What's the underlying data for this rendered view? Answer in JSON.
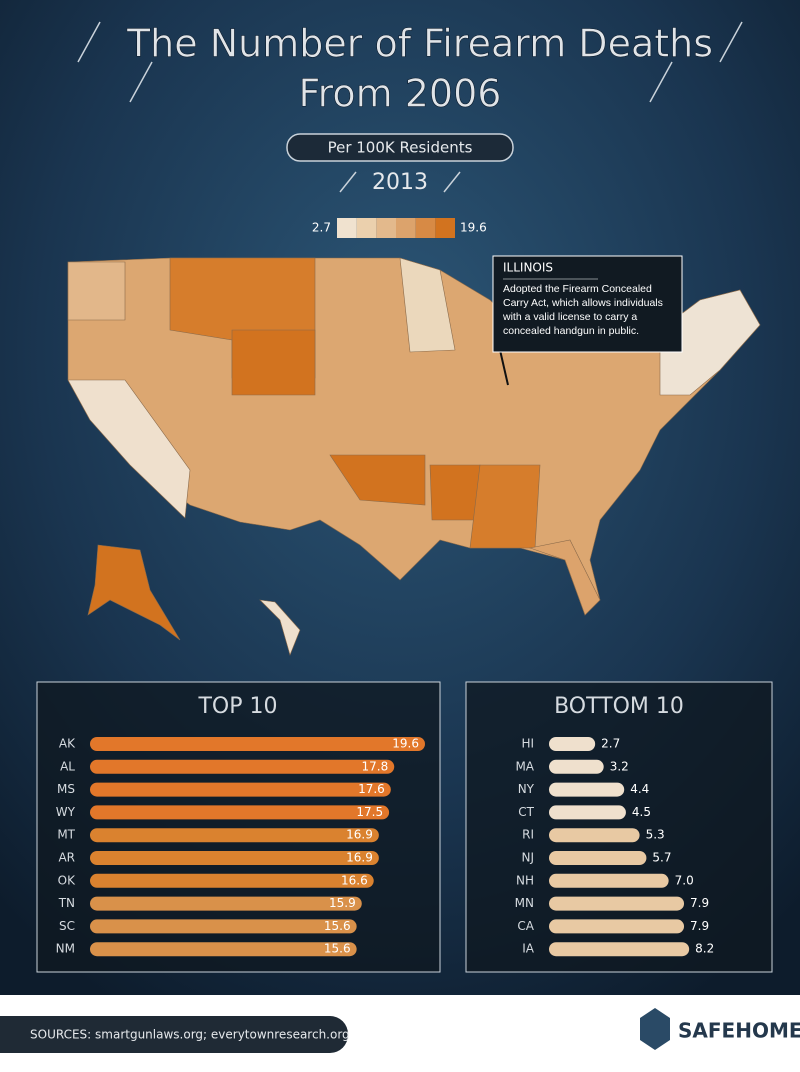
{
  "title": [
    "The Number of Firearm Deaths",
    "From 2006"
  ],
  "subtitle": "Per 100K Residents",
  "year": "2013",
  "map": {
    "legend_min": 2.7,
    "legend_max": 19.6,
    "legend_colors": [
      "#f0e2cf",
      "#ebd0ad",
      "#e3b98c",
      "#dca36c",
      "#d78a45",
      "#d2731f"
    ],
    "callout": {
      "title": "ILLINOIS",
      "text": "Adopted the Firearm Concealed Carry Act, which allows individuals with a valid license to carry a concealed handgun in public."
    }
  },
  "chart_data": [
    {
      "type": "bar",
      "title": "TOP 10",
      "categories": [
        "AK",
        "AL",
        "MS",
        "WY",
        "MT",
        "AR",
        "OK",
        "TN",
        "SC",
        "NM"
      ],
      "values": [
        19.6,
        17.8,
        17.6,
        17.5,
        16.9,
        16.9,
        16.6,
        15.9,
        15.6,
        15.6
      ],
      "colors": [
        "#e2772a",
        "#e2772a",
        "#e2772a",
        "#e2772a",
        "#da822f",
        "#da822f",
        "#da822f",
        "#d9914a",
        "#d9914a",
        "#d9914a"
      ],
      "label_position": "inside"
    },
    {
      "type": "bar",
      "title": "BOTTOM 10",
      "categories": [
        "HI",
        "MA",
        "NY",
        "CT",
        "RI",
        "NJ",
        "NH",
        "MN",
        "CA",
        "IA"
      ],
      "values": [
        2.7,
        3.2,
        4.4,
        4.5,
        5.3,
        5.7,
        7.0,
        7.9,
        7.9,
        8.2
      ],
      "value_labels": [
        "2.7",
        "3.2",
        "4.4",
        "4.5",
        "5.3",
        "5.7",
        "7.0",
        "7.9",
        "7.9",
        "8.2"
      ],
      "colors": [
        "#efe0cd",
        "#efe0cd",
        "#efe0cd",
        "#efe0cd",
        "#e8c9a3",
        "#e8c9a3",
        "#e8c9a3",
        "#e8c9a3",
        "#e8c9a3",
        "#e8c9a3"
      ],
      "label_position": "outside"
    }
  ],
  "sources": "SOURCES: smartgunlaws.org; everytownresearch.org",
  "brand": "SAFEHOME"
}
